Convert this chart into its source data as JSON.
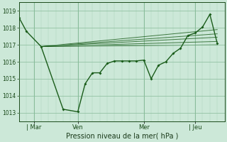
{
  "bg_color": "#cce8d8",
  "grid_color": "#88bb99",
  "line_color": "#1a5c1a",
  "xlabel": "Pression niveau de la mer( hPa )",
  "ylim": [
    1012.5,
    1019.5
  ],
  "yticks": [
    1013,
    1014,
    1015,
    1016,
    1017,
    1018,
    1019
  ],
  "xlim": [
    0,
    14
  ],
  "xtick_labels": [
    "| Mar",
    "Ven",
    "Mer",
    "| Jeu"
  ],
  "xtick_positions": [
    1,
    4,
    8.5,
    12
  ],
  "main_x": [
    0,
    0.5,
    1.5,
    3,
    4,
    4.5,
    5,
    5.5,
    6,
    6.5,
    7,
    7.5,
    8,
    8.5,
    9,
    9.5,
    10,
    10.5,
    11,
    11.5,
    12,
    12.5,
    13,
    13.5
  ],
  "main_y": [
    1018.6,
    1017.8,
    1016.9,
    1013.2,
    1013.05,
    1014.7,
    1015.35,
    1015.35,
    1015.9,
    1016.05,
    1016.05,
    1016.05,
    1016.05,
    1016.1,
    1015.0,
    1015.8,
    1016.0,
    1016.5,
    1016.8,
    1017.55,
    1017.7,
    1018.05,
    1018.8,
    1017.1
  ],
  "fan_lines": [
    {
      "x": [
        1.5,
        13.5
      ],
      "y": [
        1016.9,
        1017.9
      ]
    },
    {
      "x": [
        1.5,
        13.5
      ],
      "y": [
        1016.9,
        1017.65
      ]
    },
    {
      "x": [
        1.5,
        13.5
      ],
      "y": [
        1016.9,
        1017.45
      ]
    },
    {
      "x": [
        1.5,
        13.5
      ],
      "y": [
        1016.9,
        1017.2
      ]
    },
    {
      "x": [
        1.5,
        13.5
      ],
      "y": [
        1016.9,
        1017.0
      ]
    }
  ],
  "marker_x": [
    0,
    0.5,
    1.5,
    3,
    4,
    4.5,
    5,
    5.5,
    6,
    6.5,
    7,
    7.5,
    8,
    8.5,
    9,
    9.5,
    10,
    10.5,
    11,
    11.5,
    12,
    12.5,
    13,
    13.5
  ],
  "marker_y": [
    1018.6,
    1017.8,
    1016.9,
    1013.2,
    1013.05,
    1014.7,
    1015.35,
    1015.35,
    1015.9,
    1016.05,
    1016.05,
    1016.05,
    1016.05,
    1016.1,
    1015.0,
    1015.8,
    1016.0,
    1016.5,
    1016.8,
    1017.55,
    1017.7,
    1018.05,
    1018.8,
    1017.1
  ]
}
